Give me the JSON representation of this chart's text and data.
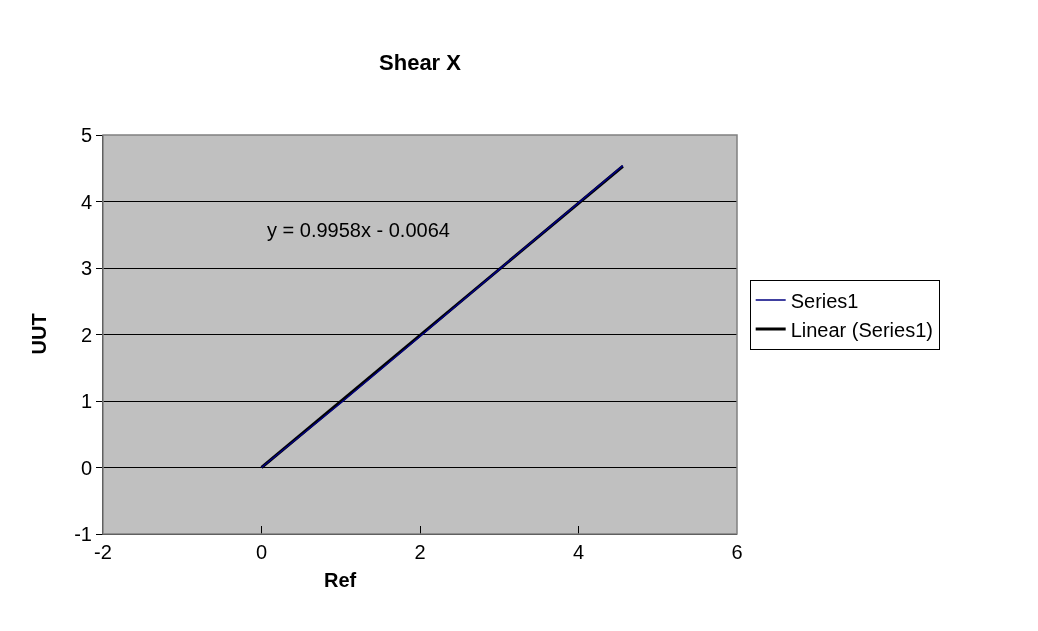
{
  "chart_data": {
    "type": "line",
    "title": "Shear X",
    "xlabel": "Ref",
    "ylabel": "UUT",
    "xlim": [
      -2,
      6
    ],
    "xticks": [
      -2,
      0,
      2,
      4,
      6
    ],
    "ylim": [
      -1,
      5
    ],
    "yticks": [
      -1,
      0,
      1,
      2,
      3,
      4,
      5
    ],
    "grid": "y",
    "legend": "right",
    "marker": "none",
    "series": [
      {
        "name": "Series1",
        "color": "#000080",
        "x": [
          0,
          1,
          2,
          3,
          4,
          4.56
        ],
        "values": [
          0,
          0.97,
          1.97,
          2.98,
          3.98,
          4.54
        ]
      },
      {
        "name": "Linear (Series1)",
        "color": "#000000",
        "x": [
          0,
          4.56
        ],
        "values": [
          0,
          4.53
        ]
      }
    ],
    "annotations": [
      "y = 0.9958x - 0.0064"
    ]
  }
}
